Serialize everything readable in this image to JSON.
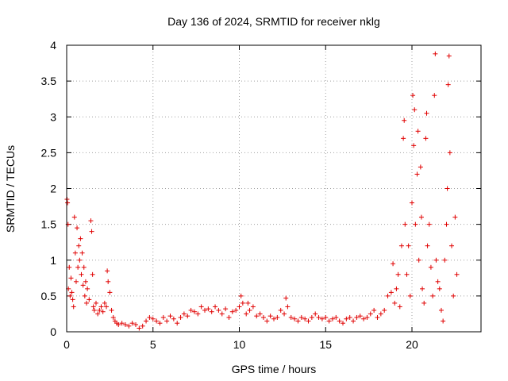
{
  "chart_data": {
    "type": "scatter",
    "title": "Day 136 of 2024, SRMTID for receiver nklg",
    "xlabel": "GPS time / hours",
    "ylabel": "SRMTID / TECUs",
    "xlim": [
      0,
      24
    ],
    "ylim": [
      0,
      4
    ],
    "xticks": [
      0,
      5,
      10,
      15,
      20
    ],
    "xtick_labels": [
      "0",
      "5",
      "10",
      "15",
      "20"
    ],
    "yticks": [
      0,
      0.5,
      1,
      1.5,
      2,
      2.5,
      3,
      3.5,
      4
    ],
    "ytick_labels": [
      "0",
      "0.5",
      "1",
      "1.5",
      "2",
      "2.5",
      "3",
      "3.5",
      "4"
    ],
    "grid": true,
    "marker": "+",
    "color": "#e00000",
    "series": [
      {
        "name": "SRMTID",
        "points": [
          [
            0.02,
            1.85
          ],
          [
            0.05,
            1.8
          ],
          [
            0.08,
            1.5
          ],
          [
            0.1,
            0.6
          ],
          [
            0.15,
            0.9
          ],
          [
            0.2,
            0.5
          ],
          [
            0.25,
            0.75
          ],
          [
            0.3,
            0.55
          ],
          [
            0.35,
            0.45
          ],
          [
            0.4,
            0.35
          ],
          [
            0.45,
            1.6
          ],
          [
            0.5,
            1.1
          ],
          [
            0.55,
            0.7
          ],
          [
            0.6,
            1.45
          ],
          [
            0.65,
            0.9
          ],
          [
            0.7,
            1.2
          ],
          [
            0.75,
            1.0
          ],
          [
            0.8,
            1.3
          ],
          [
            0.85,
            0.8
          ],
          [
            0.9,
            1.1
          ],
          [
            0.95,
            0.65
          ],
          [
            1.0,
            0.9
          ],
          [
            1.05,
            0.5
          ],
          [
            1.1,
            0.7
          ],
          [
            1.15,
            0.4
          ],
          [
            1.2,
            0.6
          ],
          [
            1.3,
            0.45
          ],
          [
            1.4,
            1.55
          ],
          [
            1.45,
            1.4
          ],
          [
            1.5,
            0.8
          ],
          [
            1.55,
            0.35
          ],
          [
            1.6,
            0.3
          ],
          [
            1.7,
            0.4
          ],
          [
            1.8,
            0.25
          ],
          [
            1.9,
            0.3
          ],
          [
            2.0,
            0.35
          ],
          [
            2.1,
            0.28
          ],
          [
            2.2,
            0.4
          ],
          [
            2.3,
            0.35
          ],
          [
            2.35,
            0.85
          ],
          [
            2.4,
            0.7
          ],
          [
            2.5,
            0.55
          ],
          [
            2.6,
            0.3
          ],
          [
            2.7,
            0.2
          ],
          [
            2.8,
            0.15
          ],
          [
            2.9,
            0.12
          ],
          [
            3.0,
            0.1
          ],
          [
            3.2,
            0.12
          ],
          [
            3.4,
            0.1
          ],
          [
            3.6,
            0.08
          ],
          [
            3.8,
            0.12
          ],
          [
            4.0,
            0.1
          ],
          [
            4.2,
            0.05
          ],
          [
            4.4,
            0.08
          ],
          [
            4.6,
            0.15
          ],
          [
            4.8,
            0.2
          ],
          [
            5.0,
            0.18
          ],
          [
            5.2,
            0.15
          ],
          [
            5.4,
            0.12
          ],
          [
            5.6,
            0.2
          ],
          [
            5.8,
            0.15
          ],
          [
            6.0,
            0.22
          ],
          [
            6.2,
            0.18
          ],
          [
            6.4,
            0.12
          ],
          [
            6.6,
            0.2
          ],
          [
            6.8,
            0.25
          ],
          [
            7.0,
            0.22
          ],
          [
            7.2,
            0.3
          ],
          [
            7.4,
            0.28
          ],
          [
            7.6,
            0.25
          ],
          [
            7.8,
            0.35
          ],
          [
            8.0,
            0.3
          ],
          [
            8.2,
            0.32
          ],
          [
            8.4,
            0.28
          ],
          [
            8.6,
            0.35
          ],
          [
            8.8,
            0.3
          ],
          [
            9.0,
            0.25
          ],
          [
            9.2,
            0.32
          ],
          [
            9.4,
            0.2
          ],
          [
            9.6,
            0.28
          ],
          [
            9.8,
            0.3
          ],
          [
            10.0,
            0.35
          ],
          [
            10.1,
            0.5
          ],
          [
            10.2,
            0.4
          ],
          [
            10.4,
            0.25
          ],
          [
            10.5,
            0.4
          ],
          [
            10.6,
            0.3
          ],
          [
            10.8,
            0.35
          ],
          [
            11.0,
            0.22
          ],
          [
            11.2,
            0.25
          ],
          [
            11.4,
            0.2
          ],
          [
            11.6,
            0.15
          ],
          [
            11.8,
            0.22
          ],
          [
            12.0,
            0.18
          ],
          [
            12.2,
            0.2
          ],
          [
            12.4,
            0.3
          ],
          [
            12.6,
            0.25
          ],
          [
            12.7,
            0.47
          ],
          [
            12.8,
            0.35
          ],
          [
            13.0,
            0.2
          ],
          [
            13.2,
            0.18
          ],
          [
            13.4,
            0.15
          ],
          [
            13.6,
            0.2
          ],
          [
            13.8,
            0.18
          ],
          [
            14.0,
            0.15
          ],
          [
            14.2,
            0.2
          ],
          [
            14.4,
            0.25
          ],
          [
            14.6,
            0.2
          ],
          [
            14.8,
            0.18
          ],
          [
            15.0,
            0.2
          ],
          [
            15.2,
            0.15
          ],
          [
            15.4,
            0.18
          ],
          [
            15.6,
            0.2
          ],
          [
            15.8,
            0.15
          ],
          [
            16.0,
            0.12
          ],
          [
            16.2,
            0.18
          ],
          [
            16.4,
            0.2
          ],
          [
            16.6,
            0.15
          ],
          [
            16.8,
            0.2
          ],
          [
            17.0,
            0.22
          ],
          [
            17.2,
            0.18
          ],
          [
            17.4,
            0.2
          ],
          [
            17.6,
            0.25
          ],
          [
            17.8,
            0.3
          ],
          [
            18.0,
            0.2
          ],
          [
            18.2,
            0.25
          ],
          [
            18.4,
            0.3
          ],
          [
            18.6,
            0.5
          ],
          [
            18.8,
            0.55
          ],
          [
            18.9,
            0.95
          ],
          [
            19.0,
            0.4
          ],
          [
            19.1,
            0.6
          ],
          [
            19.2,
            0.8
          ],
          [
            19.3,
            0.35
          ],
          [
            19.4,
            1.2
          ],
          [
            19.5,
            2.7
          ],
          [
            19.55,
            2.95
          ],
          [
            19.6,
            1.5
          ],
          [
            19.7,
            0.8
          ],
          [
            19.8,
            1.2
          ],
          [
            19.9,
            0.5
          ],
          [
            20.0,
            1.8
          ],
          [
            20.05,
            3.3
          ],
          [
            20.1,
            2.6
          ],
          [
            20.15,
            3.1
          ],
          [
            20.2,
            1.5
          ],
          [
            20.3,
            2.2
          ],
          [
            20.35,
            2.8
          ],
          [
            20.4,
            1.0
          ],
          [
            20.5,
            2.3
          ],
          [
            20.55,
            1.6
          ],
          [
            20.6,
            0.6
          ],
          [
            20.7,
            0.4
          ],
          [
            20.8,
            2.7
          ],
          [
            20.85,
            3.05
          ],
          [
            20.9,
            1.2
          ],
          [
            21.0,
            1.5
          ],
          [
            21.1,
            0.9
          ],
          [
            21.2,
            0.5
          ],
          [
            21.3,
            3.3
          ],
          [
            21.35,
            3.88
          ],
          [
            21.4,
            1.0
          ],
          [
            21.5,
            0.7
          ],
          [
            21.6,
            0.6
          ],
          [
            21.7,
            0.3
          ],
          [
            21.8,
            0.15
          ],
          [
            21.9,
            1.0
          ],
          [
            22.0,
            1.5
          ],
          [
            22.05,
            2.0
          ],
          [
            22.1,
            3.45
          ],
          [
            22.15,
            3.85
          ],
          [
            22.2,
            2.5
          ],
          [
            22.3,
            1.2
          ],
          [
            22.4,
            0.5
          ],
          [
            22.5,
            1.6
          ],
          [
            22.6,
            0.8
          ]
        ]
      }
    ]
  }
}
